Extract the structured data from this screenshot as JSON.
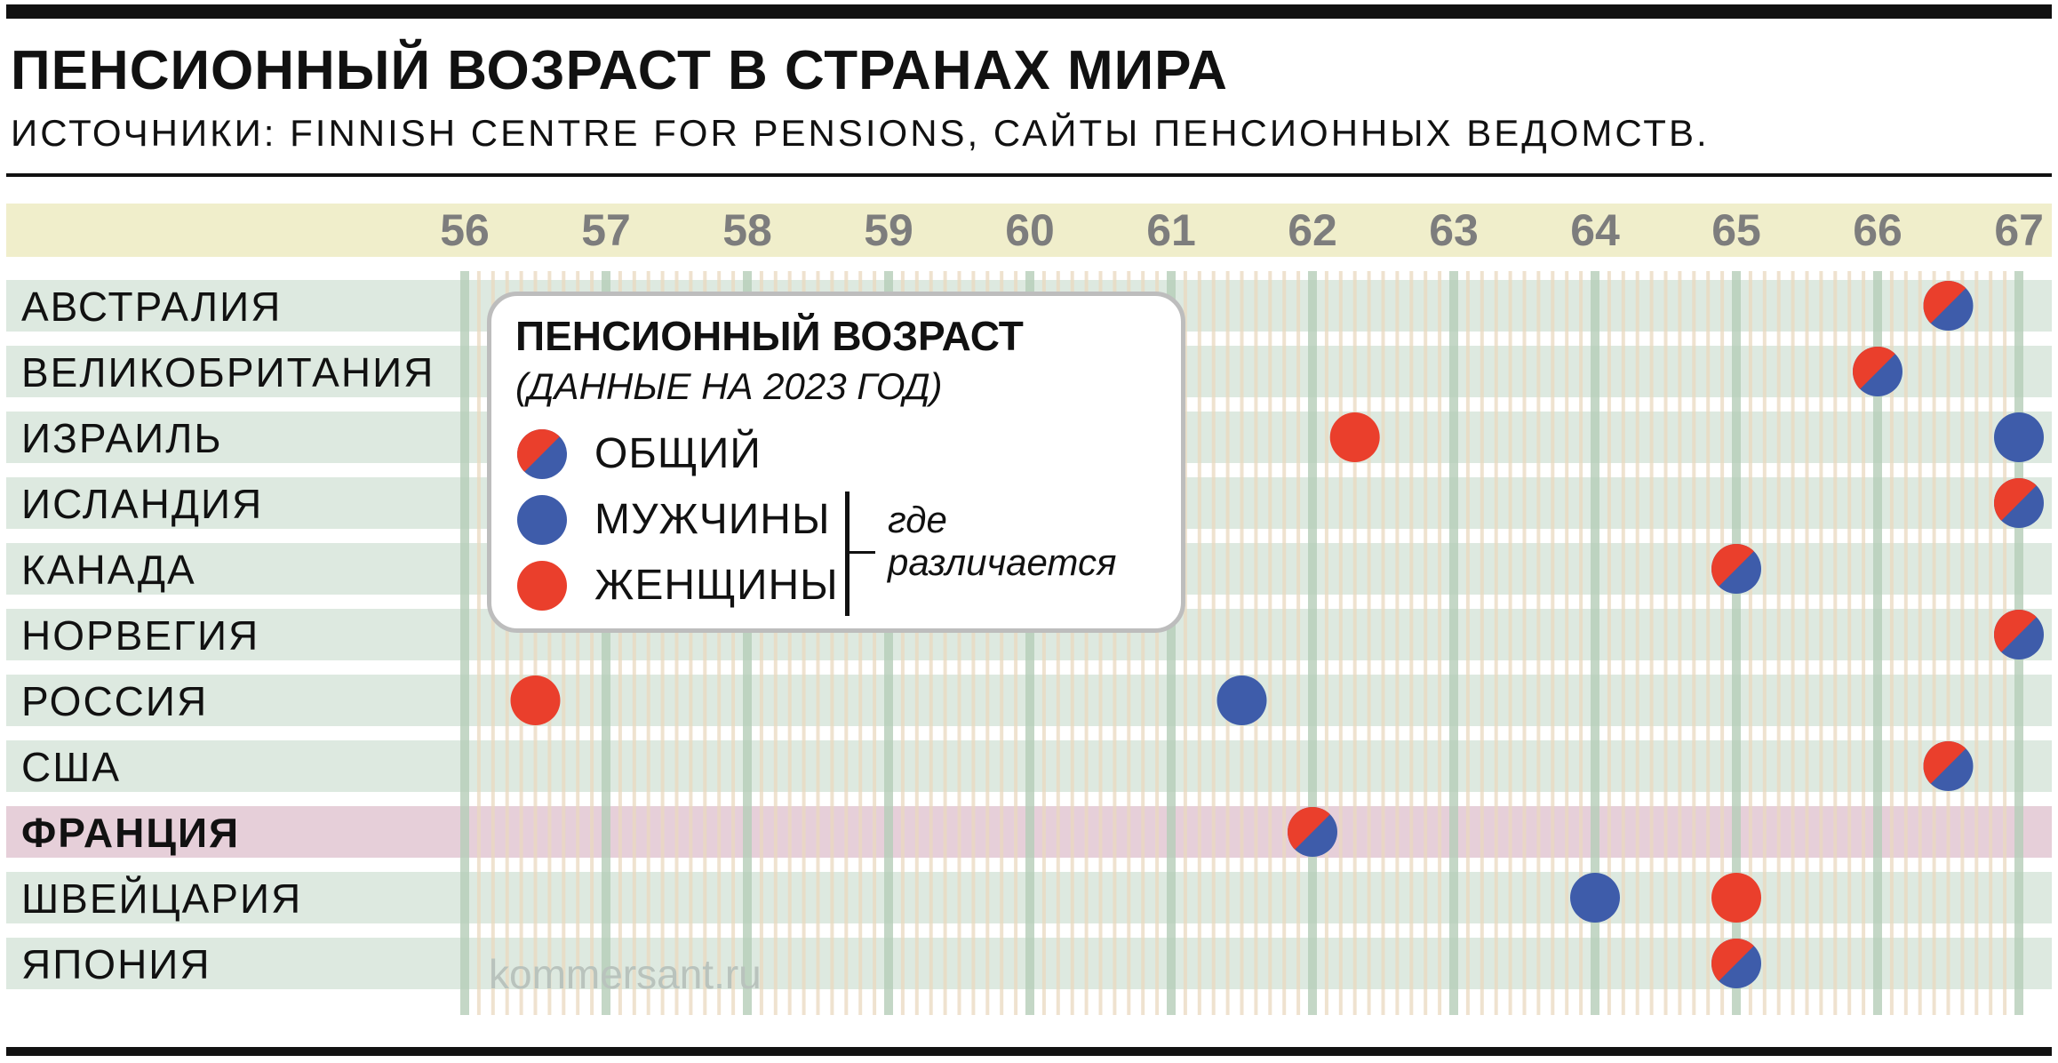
{
  "title": "ПЕНСИОННЫЙ ВОЗРАСТ В СТРАНАХ МИРА",
  "subtitle": "ИСТОЧНИКИ: FINNISH CENTRE FOR PENSIONS, САЙТЫ ПЕНСИОННЫХ ВЕДОМСТВ.",
  "watermark": "kommersant.ru",
  "legend": {
    "title": "ПЕНСИОННЫЙ ВОЗРАСТ",
    "subtitle": "(ДАННЫЕ НА 2023 ГОД)",
    "items": {
      "general": "ОБЩИЙ",
      "men": "МУЖЧИНЫ",
      "women": "ЖЕНЩИНЫ"
    },
    "note_line1": "где",
    "note_line2": "различается"
  },
  "colors": {
    "men": "#3e5caa",
    "women": "#ea3f2c",
    "row_band": "#dde9e0",
    "highlight_row": "#e6cfd9",
    "axis_band": "#f0eecb",
    "grid_major": "#b5cdb8",
    "grid_minor": "#ead8bf",
    "legend_border": "#bdbdbd"
  },
  "chart_data": {
    "type": "scatter",
    "title": "ПЕНСИОННЫЙ ВОЗРАСТ В СТРАНАХ МИРА",
    "xlabel": "",
    "ylabel": "",
    "xlim": [
      56,
      67
    ],
    "xticks": [
      "56",
      "57",
      "58",
      "59",
      "60",
      "61",
      "62",
      "63",
      "64",
      "65",
      "66",
      "67"
    ],
    "legend_position": "inside, upper-left",
    "grid": true,
    "highlight": "ФРАНЦИЯ",
    "rows": [
      {
        "country": "АВСТРАЛИЯ",
        "general": 66.5
      },
      {
        "country": "ВЕЛИКОБРИТАНИЯ",
        "general": 66
      },
      {
        "country": "ИЗРАИЛЬ",
        "men": 67,
        "women": 62.3
      },
      {
        "country": "ИСЛАНДИЯ",
        "general": 67
      },
      {
        "country": "КАНАДА",
        "general": 65
      },
      {
        "country": "НОРВЕГИЯ",
        "general": 67
      },
      {
        "country": "РОССИЯ",
        "men": 61.5,
        "women": 56.5
      },
      {
        "country": "США",
        "general": 66.5
      },
      {
        "country": "ФРАНЦИЯ",
        "general": 62
      },
      {
        "country": "ШВЕЙЦАРИЯ",
        "men": 64,
        "women": 65
      },
      {
        "country": "ЯПОНИЯ",
        "general": 65
      }
    ]
  }
}
